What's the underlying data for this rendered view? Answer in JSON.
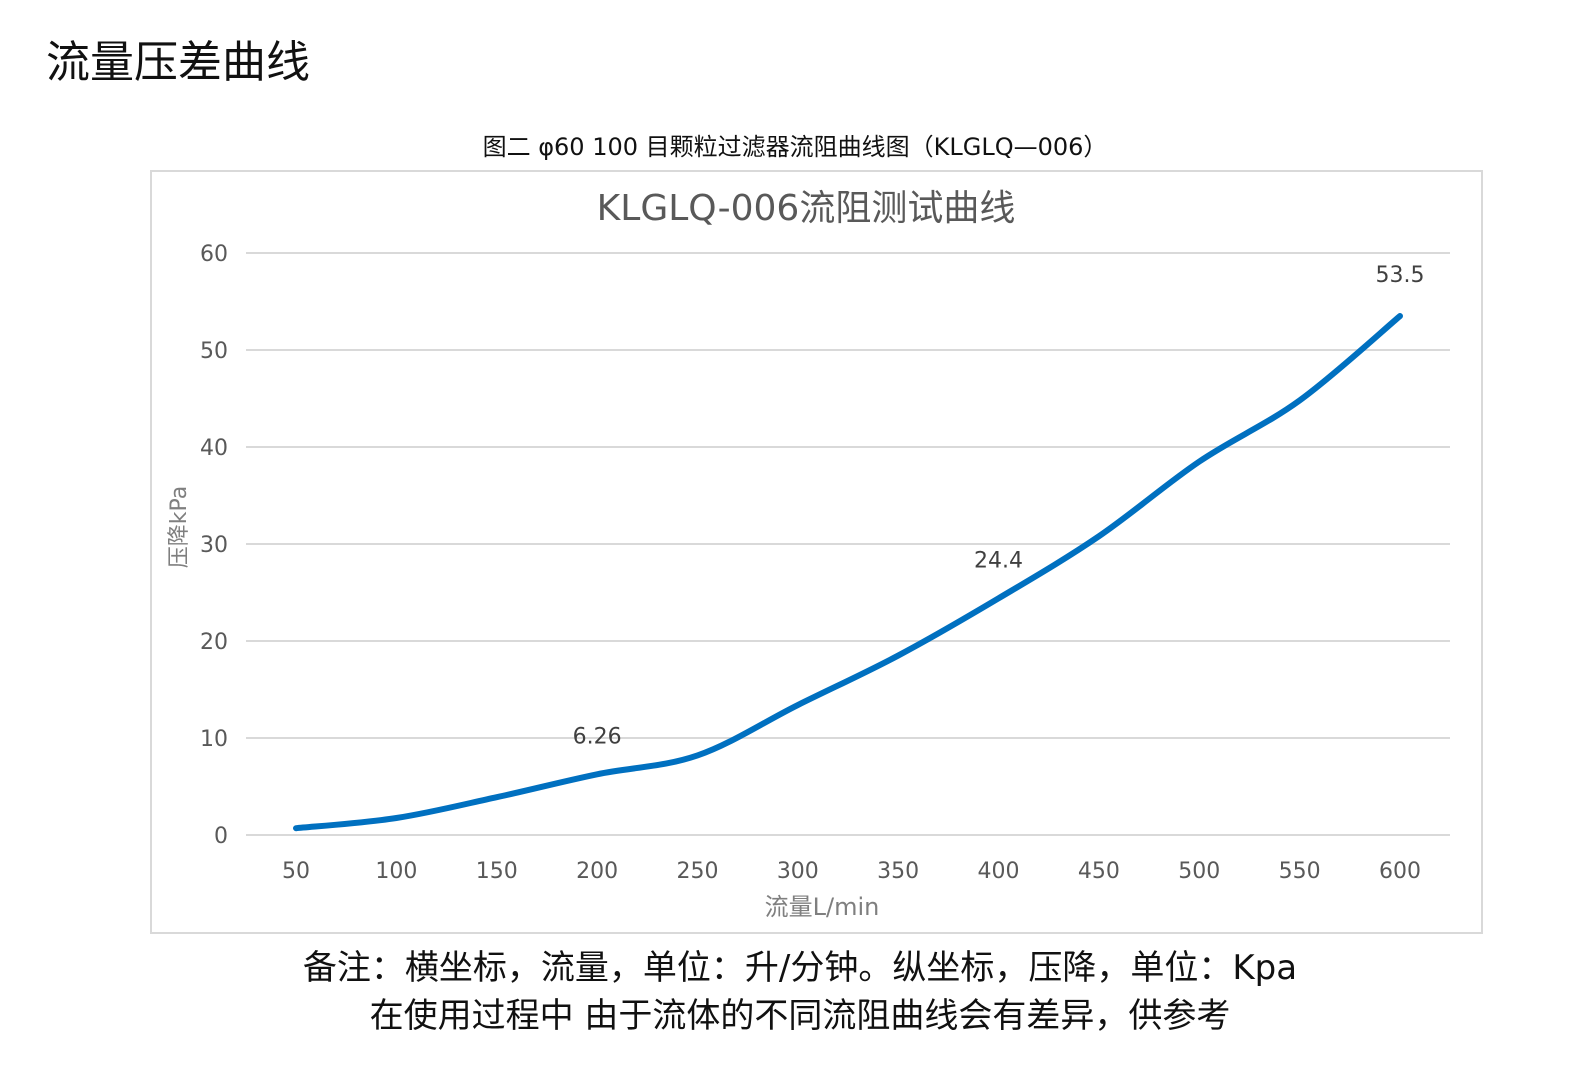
{
  "page_title": "流量压差曲线",
  "figure_caption": "图二 φ60 100 目颗粒过滤器流阻曲线图（KLGLQ—006）",
  "notes": [
    "备注：横坐标，流量，单位：升/分钟。纵坐标，压降，单位：Kpa",
    "在使用过程中 由于流体的不同流阻曲线会有差异，供参考"
  ],
  "chart_data": {
    "type": "line",
    "title": "KLGLQ-006流阻测试曲线",
    "xlabel": "流量L/min",
    "ylabel": "压降kPa",
    "categories": [
      "50",
      "100",
      "150",
      "200",
      "250",
      "300",
      "350",
      "400",
      "450",
      "500",
      "550",
      "600"
    ],
    "x": [
      50,
      100,
      150,
      200,
      250,
      300,
      350,
      400,
      450,
      500,
      550,
      600
    ],
    "y": [
      0.7,
      1.75,
      3.9,
      6.26,
      8.2,
      13.4,
      18.5,
      24.4,
      30.8,
      38.5,
      44.8,
      53.5
    ],
    "ylim": [
      0,
      60
    ],
    "yticks": [
      "0",
      "10",
      "20",
      "30",
      "40",
      "50",
      "60"
    ],
    "data_labels": [
      {
        "x": 200,
        "text": "6.26"
      },
      {
        "x": 400,
        "text": "24.4"
      },
      {
        "x": 600,
        "text": "53.5"
      }
    ],
    "grid": true,
    "smooth": true,
    "line_color": "#0070c0",
    "legend": "none"
  }
}
